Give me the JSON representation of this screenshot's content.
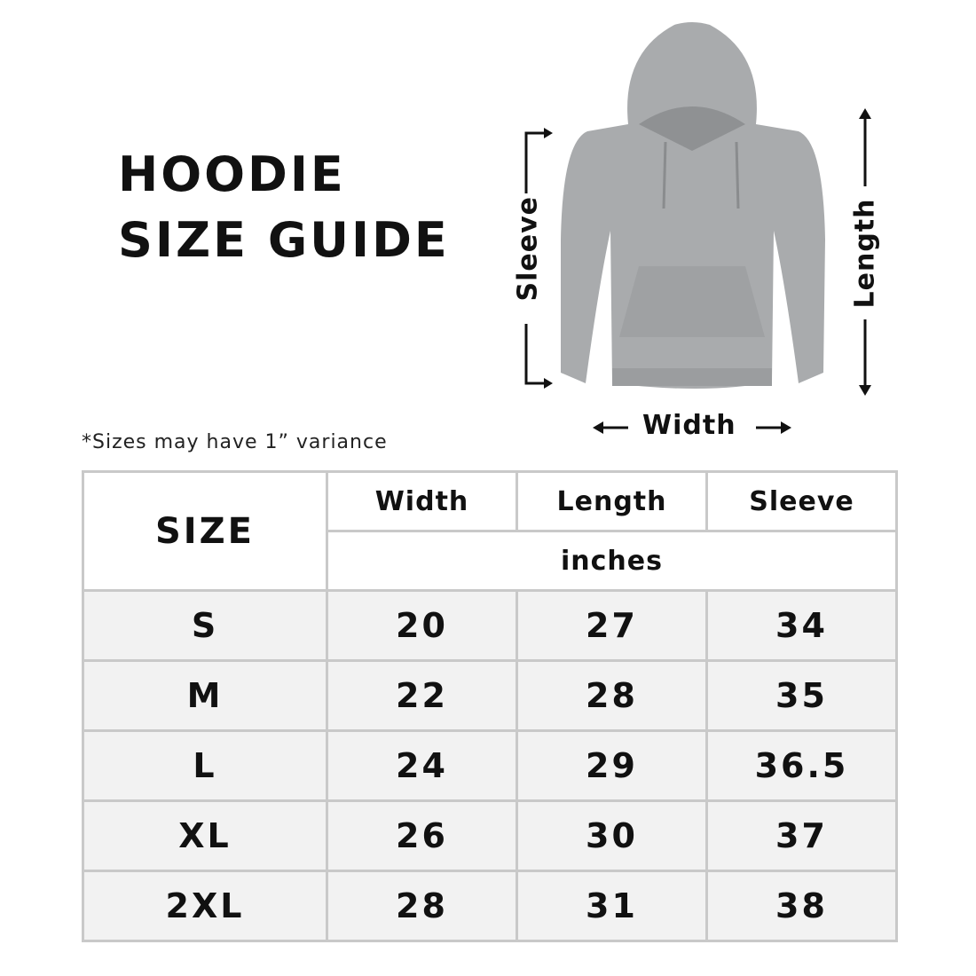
{
  "title": {
    "line1": "HOODIE",
    "line2": "SIZE GUIDE"
  },
  "note": "*Sizes may have 1” variance",
  "diagram": {
    "sleeve": "Sleeve",
    "length": "Length",
    "width": "Width",
    "garment_color": "#a9abad"
  },
  "table": {
    "size_header": "SIZE",
    "columns": [
      "Width",
      "Length",
      "Sleeve"
    ],
    "unit": "inches",
    "rows": [
      {
        "size": "S",
        "width": "20",
        "length": "27",
        "sleeve": "34"
      },
      {
        "size": "M",
        "width": "22",
        "length": "28",
        "sleeve": "35"
      },
      {
        "size": "L",
        "width": "24",
        "length": "29",
        "sleeve": "36.5"
      },
      {
        "size": "XL",
        "width": "26",
        "length": "30",
        "sleeve": "37"
      },
      {
        "size": "2XL",
        "width": "28",
        "length": "31",
        "sleeve": "38"
      }
    ]
  }
}
